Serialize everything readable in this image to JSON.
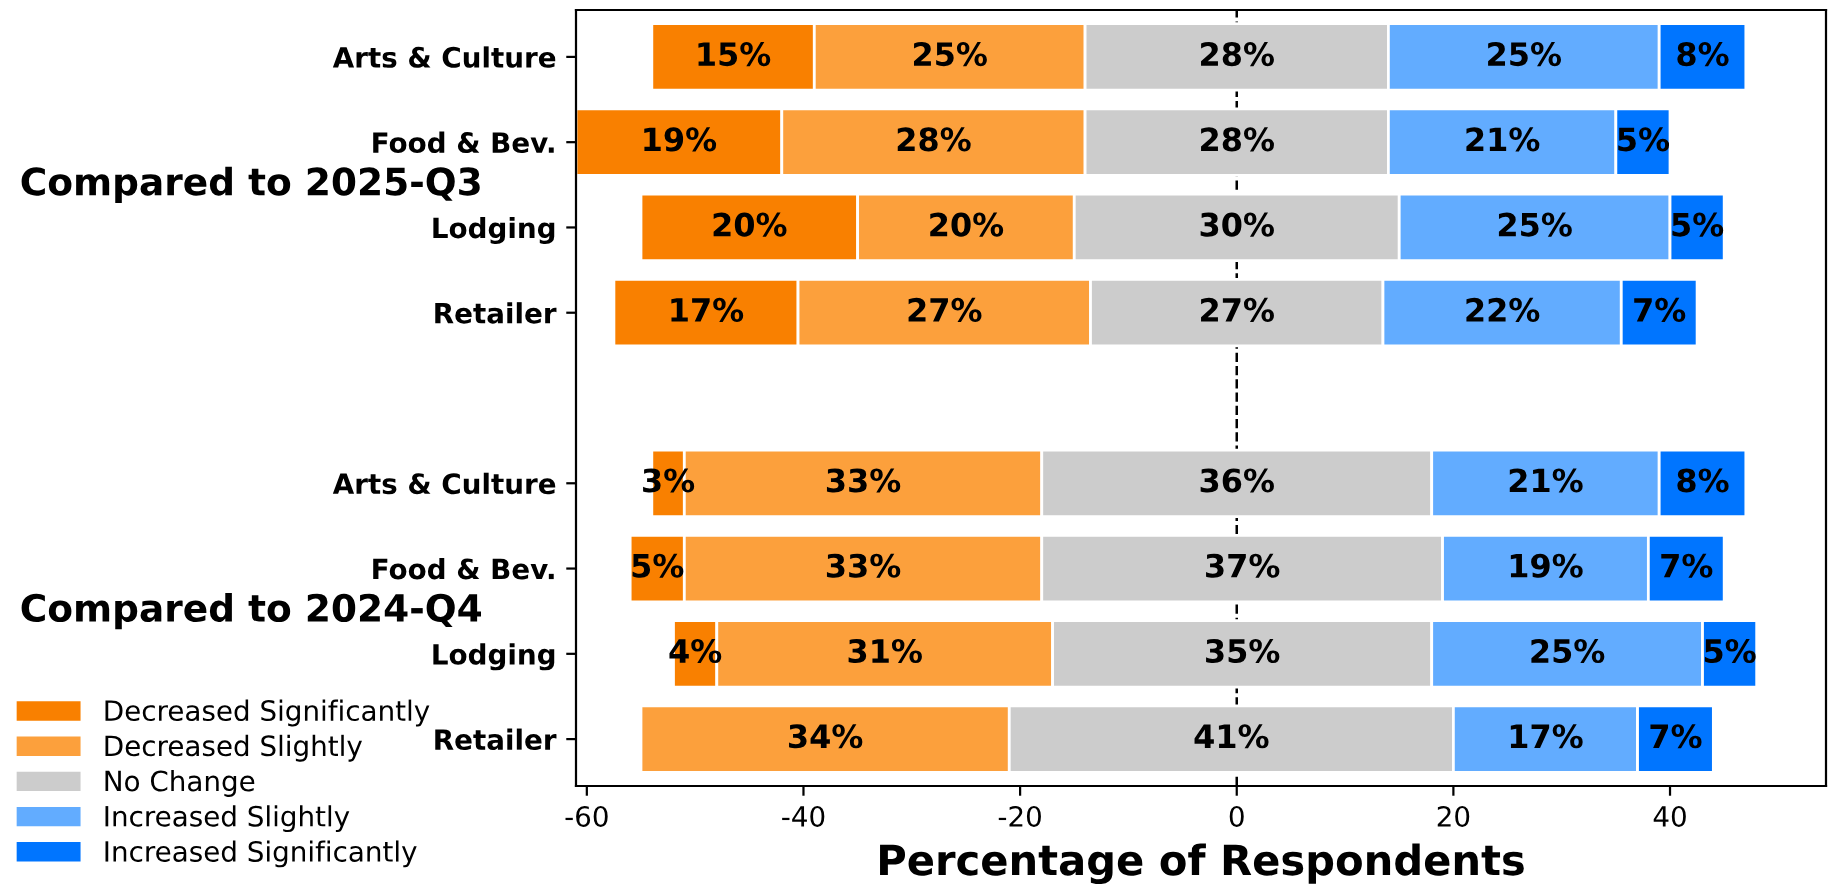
{
  "chart_data": {
    "type": "bar",
    "orientation": "horizontal",
    "xlabel": "Percentage of Respondents",
    "categories": [
      "Arts & Culture",
      "Food & Bev.",
      "Lodging",
      "Retailer",
      null,
      "Arts & Culture",
      "Food & Bev.",
      "Lodging",
      "Retailer"
    ],
    "series": [
      {
        "name": "Decreased Significantly",
        "color": "#f98000",
        "base": [
          -54,
          -61,
          -55,
          -57.5,
          null,
          -54,
          -56,
          -52,
          null
        ],
        "values": [
          15,
          19,
          20,
          17,
          null,
          3,
          5,
          4,
          null
        ],
        "value_labels": [
          "15%",
          "19%",
          "20%",
          "17%",
          null,
          "3%",
          "5%",
          "4%",
          null
        ]
      },
      {
        "name": "Decreased Slightly",
        "color": "#fca03c",
        "base": [
          -39,
          -42,
          -35,
          -40.5,
          null,
          -51,
          -51,
          -48,
          -55
        ],
        "values": [
          25,
          28,
          20,
          27,
          null,
          33,
          33,
          31,
          34
        ],
        "value_labels": [
          "25%",
          "28%",
          "20%",
          "27%",
          null,
          "33%",
          "33%",
          "31%",
          "34%"
        ]
      },
      {
        "name": "No Change",
        "color": "#cccccc",
        "base": [
          -14,
          -14,
          -15,
          -13.5,
          null,
          -18,
          -18,
          -17,
          -21
        ],
        "values": [
          28,
          28,
          30,
          27,
          null,
          36,
          37,
          35,
          41
        ],
        "value_labels": [
          "28%",
          "28%",
          "30%",
          "27%",
          null,
          "36%",
          "37%",
          "35%",
          "41%"
        ]
      },
      {
        "name": "Increased Slightly",
        "color": "#62acff",
        "base": [
          14,
          14,
          15,
          13.5,
          null,
          18,
          19,
          18,
          20
        ],
        "values": [
          25,
          21,
          25,
          22,
          null,
          21,
          19,
          25,
          17
        ],
        "value_labels": [
          "25%",
          "21%",
          "25%",
          "22%",
          null,
          "21%",
          "19%",
          "25%",
          "17%"
        ]
      },
      {
        "name": "Increased Significantly",
        "color": "#0075ff",
        "base": [
          39,
          35,
          40,
          35.5,
          null,
          39,
          38,
          43,
          37
        ],
        "values": [
          8,
          5,
          5,
          7,
          null,
          8,
          7,
          5,
          7
        ],
        "value_labels": [
          "8%",
          "5%",
          "5%",
          "7%",
          null,
          "8%",
          "7%",
          "5%",
          "7%"
        ]
      }
    ],
    "annotations": [
      "Compared to 2025-Q3",
      "Compared to 2024-Q4"
    ],
    "xlim": [
      -61,
      54.4
    ],
    "xticks": [
      -60,
      -40,
      -20,
      0,
      20,
      40
    ],
    "ref_lines": [
      {
        "axis": "x",
        "value": 0,
        "line_style": "dashed",
        "color": "#000000"
      }
    ],
    "grid": false,
    "legend": "bottom left"
  }
}
